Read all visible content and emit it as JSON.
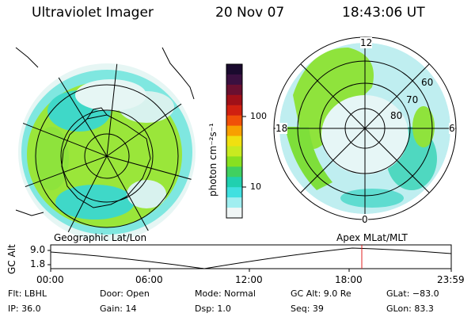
{
  "header": {
    "title": "Ultraviolet Imager",
    "date": "20 Nov 07",
    "time": "18:43:06 UT"
  },
  "colorbar": {
    "label": "photon cm⁻²s⁻¹",
    "ticks": [
      "100",
      "10"
    ],
    "colors": [
      "#1a0a2e",
      "#3a1040",
      "#6a1030",
      "#a01018",
      "#d02010",
      "#f05008",
      "#f8a000",
      "#f0e010",
      "#c8ea20",
      "#88e020",
      "#40d060",
      "#20d0b0",
      "#40e0e0",
      "#a0eef0",
      "#f0f6f6"
    ]
  },
  "left_panel": {
    "projection_label": "Geographic Lat/Lon"
  },
  "right_panel": {
    "projection_label": "Apex MLat/MLT",
    "mlt_labels": {
      "top": "12",
      "left": "18",
      "right": "6",
      "bottom": "0"
    },
    "lat_labels": [
      "60",
      "70",
      "80"
    ]
  },
  "timeline": {
    "y_axis_label": "GC Alt",
    "y_ticks": [
      "9.0",
      "1.8"
    ],
    "x_ticks": [
      "00:00",
      "06:00",
      "12:00",
      "18:00",
      "23:59"
    ],
    "marker_time": "18:43"
  },
  "status": {
    "flt": "Flt: LBHL",
    "ip": "IP: 36.0",
    "door": "Door: Open",
    "gain": "Gain: 14",
    "mode": "Mode: Normal",
    "dsp": "Dsp:    1.0",
    "gc_alt": "GC Alt: 9.0 Re",
    "seq": "Seq: 39",
    "glat": "GLat: −83.0",
    "glon": "GLon:  83.3"
  }
}
